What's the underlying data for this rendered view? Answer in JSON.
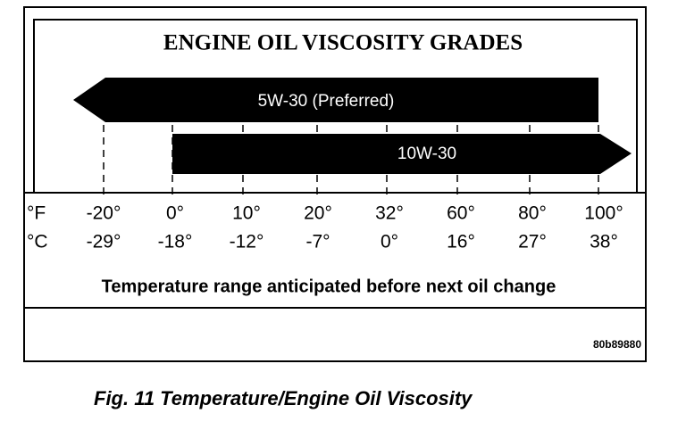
{
  "header": {
    "title": "ENGINE OIL VISCOSITY GRADES"
  },
  "grades": [
    {
      "label": "5W-30 (Preferred)"
    },
    {
      "label": "10W-30"
    }
  ],
  "scale": {
    "fahrenheit_unit": "°F",
    "celsius_unit": "°C",
    "fahrenheit": [
      "-20°",
      "0°",
      "10°",
      "20°",
      "32°",
      "60°",
      "80°",
      "100°"
    ],
    "celsius": [
      "-29°",
      "-18°",
      "-12°",
      "-7°",
      "0°",
      "16°",
      "27°",
      "38°"
    ],
    "caption": "Temperature range anticipated before next oil change"
  },
  "code": "80b89880",
  "figure_caption": "Fig. 11 Temperature/Engine Oil Viscosity"
}
